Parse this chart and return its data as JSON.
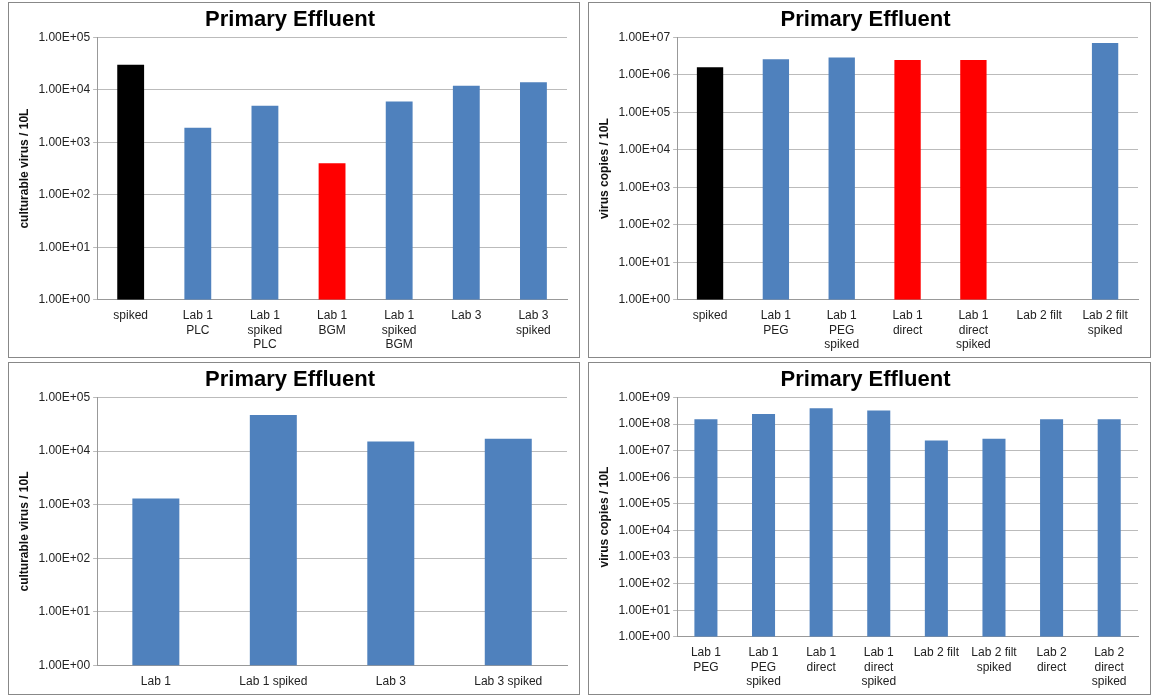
{
  "chart_data": [
    {
      "type": "bar",
      "title": "Primary Effluent",
      "ylabel": "culturable virus / 10L",
      "categories": [
        "spiked",
        "Lab 1 PLC",
        "Lab 1 spiked PLC",
        "Lab 1 BGM",
        "Lab 1 spiked BGM",
        "Lab 3",
        "Lab 3 spiked"
      ],
      "values": [
        30000,
        1900,
        5000,
        400,
        6000,
        12000,
        14000
      ],
      "colors": [
        "#000000",
        "#4f81bd",
        "#4f81bd",
        "#ff0000",
        "#4f81bd",
        "#4f81bd",
        "#4f81bd"
      ],
      "log": "y",
      "ylim": [
        1,
        100000
      ],
      "yticks": [
        {
          "value": 1,
          "label": "1.00E+00"
        },
        {
          "value": 10,
          "label": "1.00E+01"
        },
        {
          "value": 100,
          "label": "1.00E+02"
        },
        {
          "value": 1000,
          "label": "1.00E+03"
        },
        {
          "value": 10000,
          "label": "1.00E+04"
        },
        {
          "value": 100000,
          "label": "1.00E+05"
        }
      ],
      "grid": "y",
      "legend": false
    },
    {
      "type": "bar",
      "title": "Primary Effluent",
      "ylabel": "virus copies / 10L",
      "categories": [
        "spiked",
        "Lab 1 PEG",
        "Lab 1 PEG spiked",
        "Lab 1 direct",
        "Lab 1 direct spiked",
        "Lab 2 filt",
        "Lab 2 filt spiked"
      ],
      "values": [
        1600000,
        2600000,
        2900000,
        2500000,
        2500000,
        null,
        7100000
      ],
      "colors": [
        "#000000",
        "#4f81bd",
        "#4f81bd",
        "#ff0000",
        "#ff0000",
        "#4f81bd",
        "#4f81bd"
      ],
      "log": "y",
      "ylim": [
        1,
        10000000
      ],
      "yticks": [
        {
          "value": 1,
          "label": "1.00E+00"
        },
        {
          "value": 10,
          "label": "1.00E+01"
        },
        {
          "value": 100,
          "label": "1.00E+02"
        },
        {
          "value": 1000,
          "label": "1.00E+03"
        },
        {
          "value": 10000,
          "label": "1.00E+04"
        },
        {
          "value": 100000,
          "label": "1.00E+05"
        },
        {
          "value": 1000000,
          "label": "1.00E+06"
        },
        {
          "value": 10000000,
          "label": "1.00E+07"
        }
      ],
      "grid": "y",
      "legend": false
    },
    {
      "type": "bar",
      "title": "Primary Effluent",
      "ylabel": "culturable virus / 10L",
      "categories": [
        "Lab 1",
        "Lab 1  spiked",
        "Lab 3",
        "Lab 3  spiked"
      ],
      "values": [
        1300,
        47000,
        15000,
        17000
      ],
      "colors": [
        "#4f81bd",
        "#4f81bd",
        "#4f81bd",
        "#4f81bd"
      ],
      "log": "y",
      "ylim": [
        1,
        100000
      ],
      "yticks": [
        {
          "value": 1,
          "label": "1.00E+00"
        },
        {
          "value": 10,
          "label": "1.00E+01"
        },
        {
          "value": 100,
          "label": "1.00E+02"
        },
        {
          "value": 1000,
          "label": "1.00E+03"
        },
        {
          "value": 10000,
          "label": "1.00E+04"
        },
        {
          "value": 100000,
          "label": "1.00E+05"
        }
      ],
      "grid": "y",
      "legend": false
    },
    {
      "type": "bar",
      "title": "Primary Effluent",
      "ylabel": "virus copies / 10L",
      "categories": [
        "Lab 1 PEG",
        "Lab 1 PEG spiked",
        "Lab 1 direct",
        "Lab 1 direct spiked",
        "Lab 2 filt",
        "Lab 2 filt spiked",
        "Lab 2 direct",
        "Lab 2 direct spiked"
      ],
      "values": [
        150000000,
        240000000,
        390000000,
        320000000,
        24000000,
        28000000,
        150000000,
        150000000
      ],
      "colors": [
        "#4f81bd",
        "#4f81bd",
        "#4f81bd",
        "#4f81bd",
        "#4f81bd",
        "#4f81bd",
        "#4f81bd",
        "#4f81bd"
      ],
      "log": "y",
      "ylim": [
        1,
        1000000000
      ],
      "yticks": [
        {
          "value": 1,
          "label": "1.00E+00"
        },
        {
          "value": 10,
          "label": "1.00E+01"
        },
        {
          "value": 100,
          "label": "1.00E+02"
        },
        {
          "value": 1000,
          "label": "1.00E+03"
        },
        {
          "value": 10000,
          "label": "1.00E+04"
        },
        {
          "value": 100000,
          "label": "1.00E+05"
        },
        {
          "value": 1000000,
          "label": "1.00E+06"
        },
        {
          "value": 10000000,
          "label": "1.00E+07"
        },
        {
          "value": 100000000,
          "label": "1.00E+08"
        },
        {
          "value": 1000000000,
          "label": "1.00E+09"
        }
      ],
      "grid": "y",
      "legend": false
    }
  ]
}
